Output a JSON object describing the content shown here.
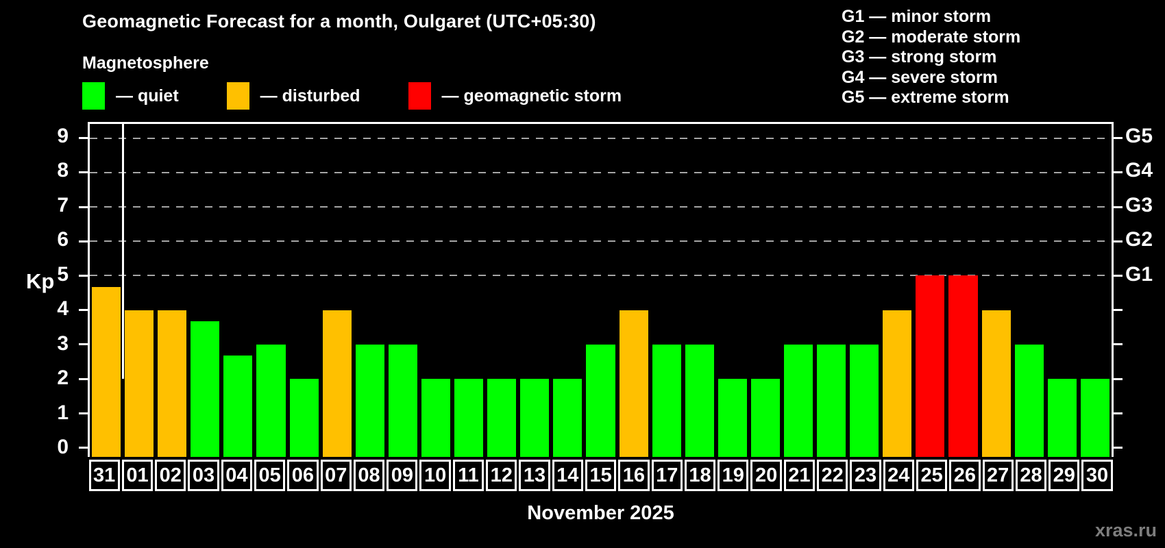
{
  "header": {
    "title": "Geomagnetic Forecast for a month, Oulgaret (UTC+05:30)",
    "subtitle": "Magnetosphere"
  },
  "legend": {
    "items": [
      {
        "key": "quiet",
        "label": "— quiet",
        "color": "#00ff00"
      },
      {
        "key": "disturbed",
        "label": "— disturbed",
        "color": "#ffc000"
      },
      {
        "key": "storm",
        "label": "— geomagnetic storm",
        "color": "#ff0000"
      }
    ]
  },
  "g_legend": {
    "lines": [
      "G1 — minor storm",
      "G2 — moderate storm",
      "G3 — strong storm",
      "G4 — severe storm",
      "G5 — extreme storm"
    ]
  },
  "chart_data": {
    "type": "bar",
    "title": "Geomagnetic Forecast for a month, Oulgaret (UTC+05:30)",
    "subtitle": "Magnetosphere",
    "xlabel": "November 2025",
    "ylabel": "Kp",
    "ylim": [
      0,
      9
    ],
    "y_ticks": [
      0,
      1,
      2,
      3,
      4,
      5,
      6,
      7,
      8,
      9
    ],
    "gridlines_at": [
      5,
      6,
      7,
      8,
      9
    ],
    "grid": "dashed horizontal at storm levels only",
    "right_axis_labels": [
      {
        "label": "G1",
        "value": 5
      },
      {
        "label": "G2",
        "value": 6
      },
      {
        "label": "G3",
        "value": 7
      },
      {
        "label": "G4",
        "value": 8
      },
      {
        "label": "G5",
        "value": 9
      }
    ],
    "categories": [
      "31",
      "01",
      "02",
      "03",
      "04",
      "05",
      "06",
      "07",
      "08",
      "09",
      "10",
      "11",
      "12",
      "13",
      "14",
      "15",
      "16",
      "17",
      "18",
      "19",
      "20",
      "21",
      "22",
      "23",
      "24",
      "25",
      "26",
      "27",
      "28",
      "29",
      "30"
    ],
    "values": [
      4.67,
      4,
      4,
      3.67,
      2.67,
      3,
      2,
      4,
      3,
      3,
      2,
      2,
      2,
      2,
      2,
      3,
      4,
      3,
      3,
      2,
      2,
      3,
      3,
      3,
      4,
      5,
      5,
      4,
      3,
      2,
      2
    ],
    "statuses": [
      "disturbed",
      "disturbed",
      "disturbed",
      "quiet",
      "quiet",
      "quiet",
      "quiet",
      "disturbed",
      "quiet",
      "quiet",
      "quiet",
      "quiet",
      "quiet",
      "quiet",
      "quiet",
      "quiet",
      "disturbed",
      "quiet",
      "quiet",
      "quiet",
      "quiet",
      "quiet",
      "quiet",
      "quiet",
      "disturbed",
      "storm",
      "storm",
      "disturbed",
      "quiet",
      "quiet",
      "quiet"
    ],
    "colors": {
      "quiet": "#00ff00",
      "disturbed": "#ffc000",
      "storm": "#ff0000"
    },
    "month_separator_after_index": 0
  },
  "watermark": {
    "text": "xras.ru"
  }
}
